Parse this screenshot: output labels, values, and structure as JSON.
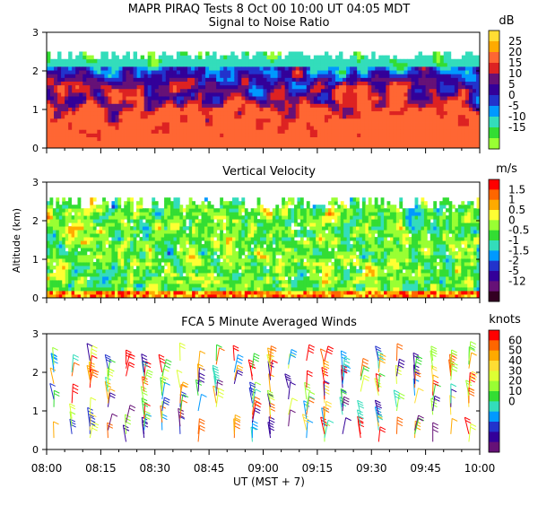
{
  "figure_title": "MAPR PIRAQ Tests  8 Oct 00  10:00 UT  04:05  MDT",
  "x_axis": {
    "label": "UT  (MST + 7)",
    "ticks": [
      "08:00",
      "08:15",
      "08:30",
      "08:45",
      "09:00",
      "09:15",
      "09:30",
      "09:45",
      "10:00"
    ],
    "range_minutes": [
      0,
      120
    ]
  },
  "shared_ylabel": "Altitude (km)",
  "chart_data": [
    {
      "type": "heatmap",
      "title": "Signal to Noise Ratio",
      "unit": "dB",
      "y_ticks": [
        "0",
        "1",
        "2",
        "3"
      ],
      "ylim": [
        0,
        3
      ],
      "colorbar_labels": [
        "25",
        "20",
        "15",
        "10",
        "5",
        "0",
        "-5",
        "-10",
        "-15"
      ],
      "colorbar_colors": [
        "#ffdd33",
        "#ffaa00",
        "#ff6633",
        "#dd2222",
        "#661177",
        "#330099",
        "#2233cc",
        "#0099ff",
        "#33ddbb",
        "#33dd33",
        "#99ff33"
      ],
      "description_levels": "low-altitude high SNR, decreasing with height to ~2.5 km"
    },
    {
      "type": "heatmap",
      "title": "Vertical Velocity",
      "unit": "m/s",
      "y_ticks": [
        "0",
        "1",
        "2",
        "3"
      ],
      "ylim": [
        0,
        3
      ],
      "colorbar_labels": [
        "1.5",
        "1",
        "0.5",
        "0",
        "-0.5",
        "-1",
        "-1.5",
        "-2",
        "-5",
        "-12"
      ],
      "colorbar_colors": [
        "#ff0000",
        "#ff6600",
        "#ffaa00",
        "#ffff33",
        "#99ff33",
        "#33dd33",
        "#33ddbb",
        "#0099ff",
        "#2233cc",
        "#330099",
        "#661177",
        "#330022"
      ]
    },
    {
      "type": "scatter",
      "title": "FCA 5 Minute Averaged Winds",
      "unit": "knots",
      "y_ticks": [
        "0",
        "1",
        "2",
        "3"
      ],
      "ylim": [
        0,
        3
      ],
      "colorbar_labels": [
        "60",
        "50",
        "40",
        "30",
        "20",
        "10",
        "0"
      ],
      "colorbar_colors": [
        "#ff0000",
        "#ff6600",
        "#ffaa00",
        "#ffdd33",
        "#ddff33",
        "#99ff33",
        "#33dd33",
        "#33ddbb",
        "#0099ff",
        "#2233cc",
        "#330099",
        "#661177"
      ],
      "marks": "wind barbs"
    }
  ]
}
